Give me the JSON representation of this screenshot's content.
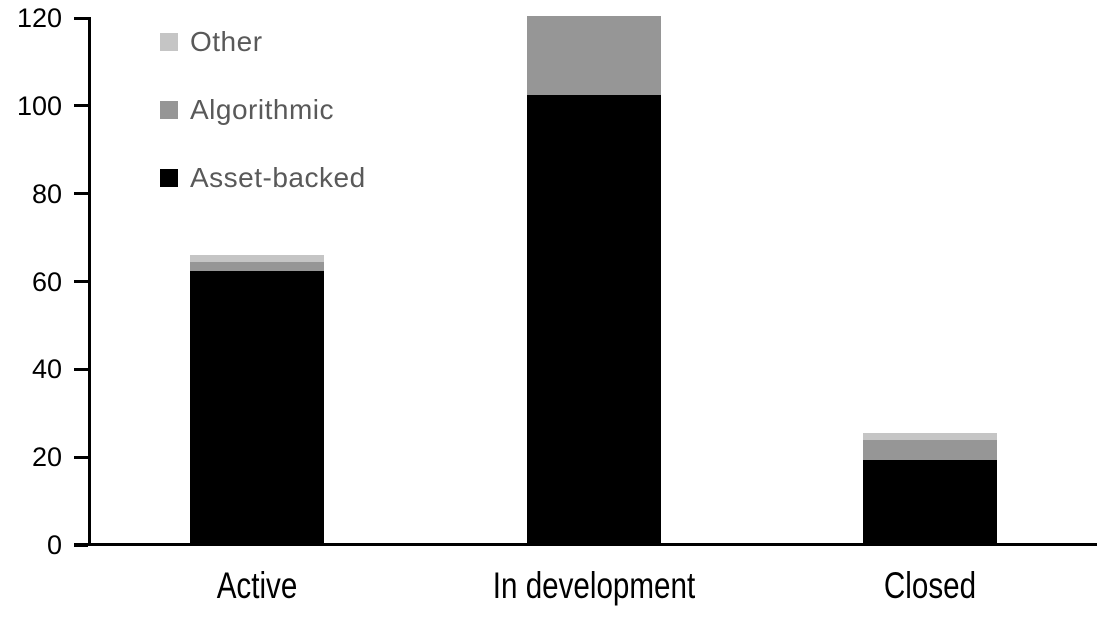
{
  "chart_data": {
    "type": "bar",
    "stacked": true,
    "title": "",
    "xlabel": "",
    "ylabel": "",
    "categories": [
      "Active",
      "In development",
      "Closed"
    ],
    "series": [
      {
        "name": "Asset-backed",
        "color": "#000000",
        "values": [
          62,
          102,
          19
        ]
      },
      {
        "name": "Algorithmic",
        "color": "#969696",
        "values": [
          2,
          18,
          4.5
        ]
      },
      {
        "name": "Other",
        "color": "#c5c5c5",
        "values": [
          1.5,
          0,
          1.5
        ]
      }
    ],
    "stack_totals": [
      65.5,
      120,
      25
    ],
    "ylim": [
      0,
      120
    ],
    "yticks": [
      0,
      20,
      40,
      60,
      80,
      100,
      120
    ],
    "grid": false,
    "legend_position": "top-left",
    "legend_order": [
      "Other",
      "Algorithmic",
      "Asset-backed"
    ]
  },
  "colors": {
    "background": "#ffffff",
    "axis": "#000000",
    "axis_label_text": "#000000",
    "legend_text": "#595959"
  }
}
